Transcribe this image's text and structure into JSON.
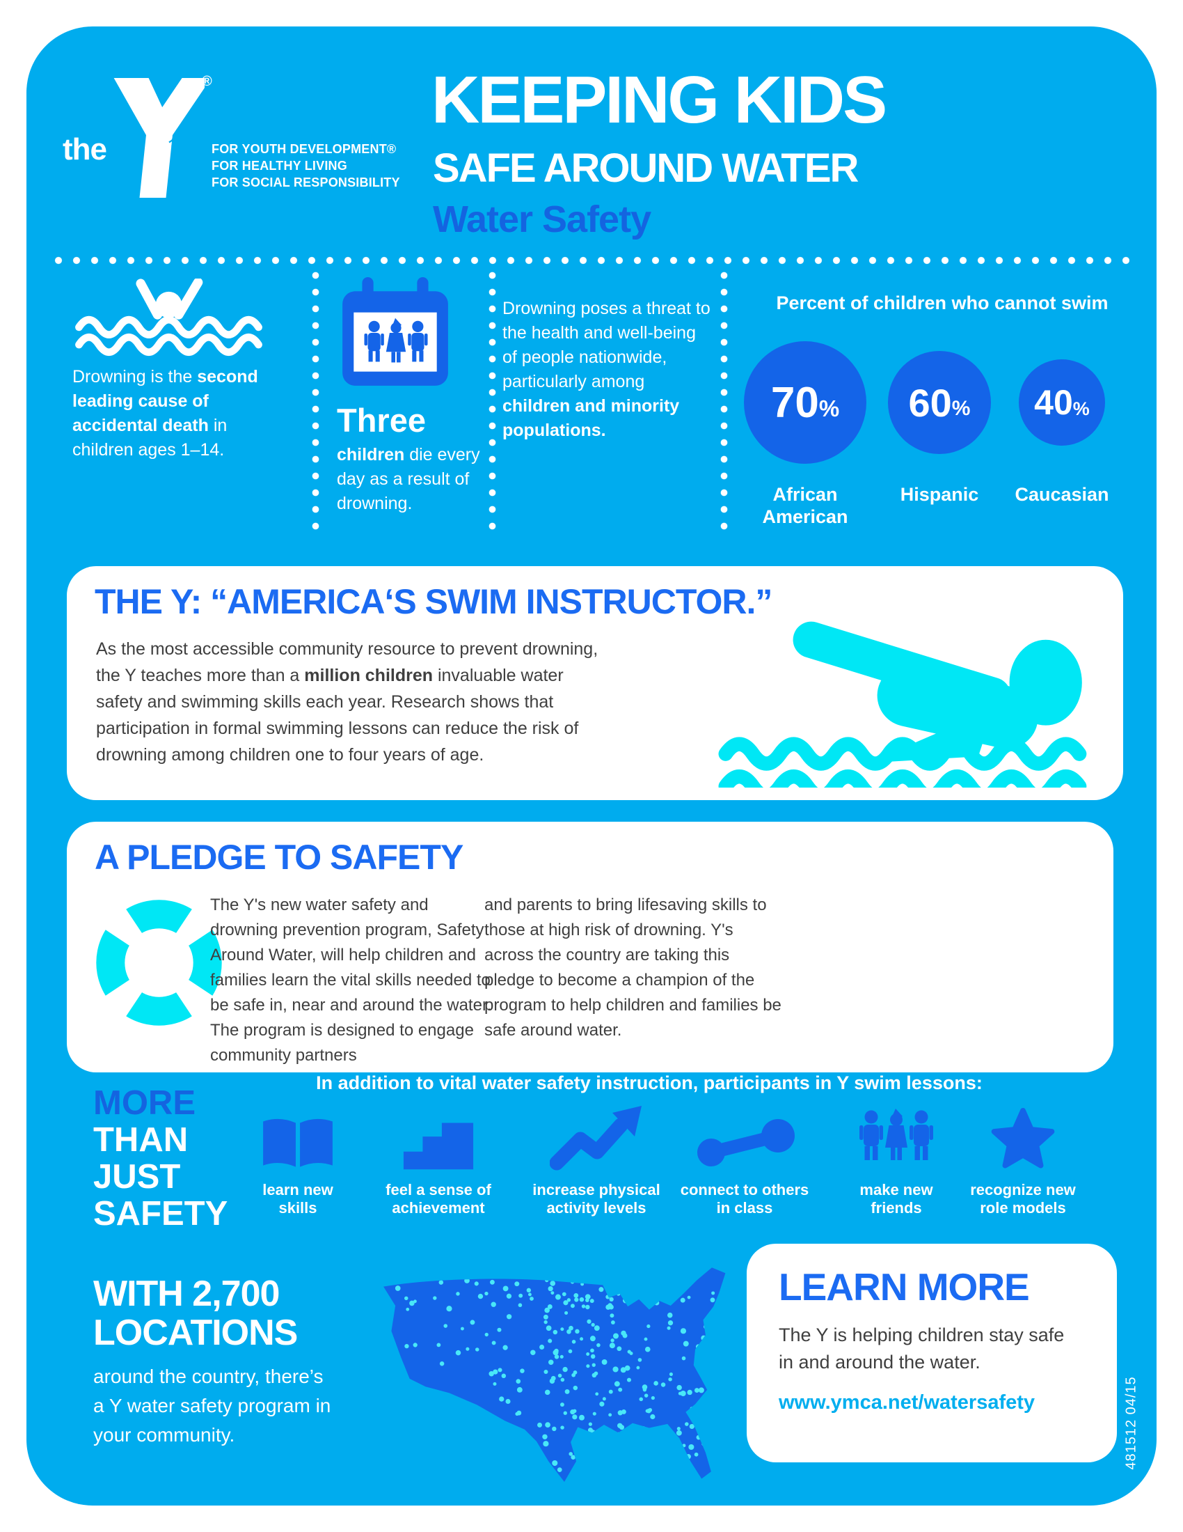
{
  "colors": {
    "background_cyan": "#00ACEE",
    "accent_blue": "#1464E8",
    "heading_blue": "#1B6BF2",
    "aqua": "#00E7F5",
    "body_gray": "#3F3F3F",
    "dot_cyan": "#49E8F8"
  },
  "header": {
    "logo_the": "the",
    "logo_ymca": "YMCA",
    "registered_mark": "®",
    "taglines": [
      "FOR YOUTH DEVELOPMENT®",
      "FOR HEALTHY LIVING",
      "FOR SOCIAL RESPONSIBILITY"
    ],
    "title_line1": "KEEPING KIDS",
    "title_line2": "SAFE AROUND WATER",
    "subtitle": "Water Safety"
  },
  "facts": {
    "fact1_runs": [
      {
        "t": "Drowning is the "
      },
      {
        "t": "second leading cause of accidental death",
        "b": true
      },
      {
        "t": " in children ages 1–14."
      }
    ],
    "fact2_big": "Three",
    "fact2_runs": [
      {
        "t": "children",
        "b": true
      },
      {
        "t": " die every day as a result of drowning."
      }
    ],
    "fact3_runs": [
      {
        "t": "Drowning poses a threat to the health and well-being of people nationwide, particularly among "
      },
      {
        "t": "children and minority populations.",
        "b": true
      }
    ],
    "swim_stats": {
      "title": "Percent of children who cannot swim",
      "items": [
        {
          "value": "70",
          "unit": "%",
          "label": "African American"
        },
        {
          "value": "60",
          "unit": "%",
          "label": "Hispanic"
        },
        {
          "value": "40",
          "unit": "%",
          "label": "Caucasian"
        }
      ]
    }
  },
  "instructor": {
    "title": "THE Y: “AMERICA‘S SWIM INSTRUCTOR.”",
    "body_runs": [
      {
        "t": "As the most accessible community resource to prevent drowning, the Y teaches more than a "
      },
      {
        "t": "million children",
        "b": true
      },
      {
        "t": " invaluable water safety and swimming skills each year. Research shows that participation in formal swimming lessons can reduce the risk of drowning among children one to four years of age."
      }
    ]
  },
  "pledge": {
    "title": "A PLEDGE TO SAFETY",
    "col1": "The Y's new water safety and drowning prevention program, Safety Around Water, will help children and families learn the vital skills needed to be safe in, near and around the water. The program is designed to engage community partners",
    "col2": "and parents to bring lifesaving skills to those at high risk of drowning. Y's across the country are taking this pledge to become a champion of the program to help children and families be safe around water."
  },
  "benefits": {
    "side_title_accent": "MORE",
    "side_title_rest": "THAN\nJUST\nSAFETY",
    "heading": "In addition to vital water safety instruction, participants in Y swim lessons:",
    "items": [
      {
        "icon": "book-icon",
        "label": "learn new\nskills"
      },
      {
        "icon": "stairs-icon",
        "label": "feel a sense of\nachievement"
      },
      {
        "icon": "trend-arrow-icon",
        "label": "increase physical\nactivity levels"
      },
      {
        "icon": "dumbbell-icon",
        "label": "connect to others\nin class"
      },
      {
        "icon": "children-icon",
        "label": "make new\nfriends"
      },
      {
        "icon": "star-icon",
        "label": "recognize new\nrole models"
      }
    ]
  },
  "locations": {
    "title": "WITH 2,700\nLOCATIONS",
    "body": "around the country, there’s a Y water safety program in your community."
  },
  "learn_more": {
    "title": "LEARN MORE",
    "body": "The Y is helping children stay safe in and around the water.",
    "link": "www.ymca.net/watersafety"
  },
  "footer": {
    "print_code": "481512  04/15"
  }
}
